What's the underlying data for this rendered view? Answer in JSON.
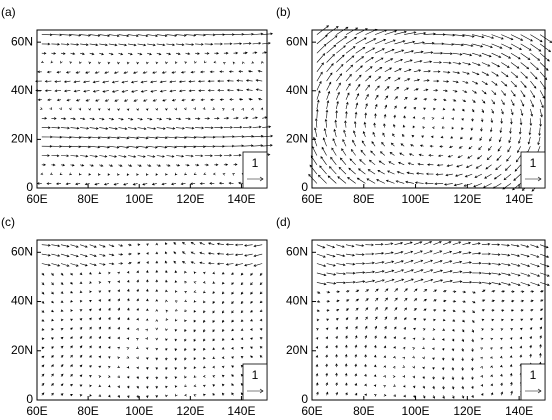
{
  "panels": [
    {
      "label": "(a)",
      "x_ticks": [
        "60E",
        "80E",
        "100E",
        "120E",
        "140E"
      ],
      "y_ticks": [
        "0",
        "20N",
        "40N",
        "60N"
      ],
      "reference_label": "1"
    },
    {
      "label": "(b)",
      "x_ticks": [
        "60E",
        "80E",
        "100E",
        "120E",
        "140E"
      ],
      "y_ticks": [
        "0",
        "20N",
        "40N",
        "60N"
      ],
      "reference_label": "1"
    },
    {
      "label": "(c)",
      "x_ticks": [
        "60E",
        "80E",
        "100E",
        "120E",
        "140E"
      ],
      "y_ticks": [
        "0",
        "20N",
        "40N",
        "60N"
      ],
      "reference_label": "1"
    },
    {
      "label": "(d)",
      "x_ticks": [
        "60E",
        "80E",
        "100E",
        "120E",
        "140E"
      ],
      "y_ticks": [
        "0",
        "20N",
        "40N",
        "60N"
      ],
      "reference_label": "1"
    }
  ]
}
